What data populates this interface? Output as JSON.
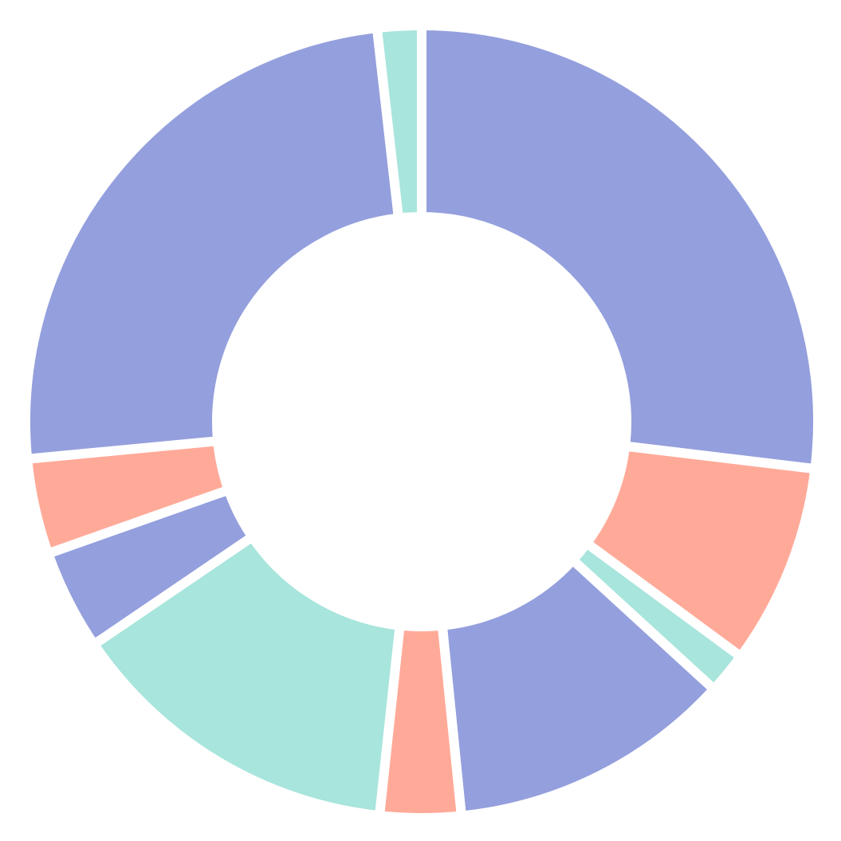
{
  "chart_data": {
    "type": "pie",
    "variant": "donut",
    "title": "",
    "legend": "none",
    "slices": [
      {
        "value": 26.9,
        "color": "#949fdd"
      },
      {
        "value": 8.2,
        "color": "#ffaa99"
      },
      {
        "value": 1.7,
        "color": "#a8e5dc"
      },
      {
        "value": 11.6,
        "color": "#949fdd"
      },
      {
        "value": 3.3,
        "color": "#ffaa99"
      },
      {
        "value": 13.8,
        "color": "#a8e5dc"
      },
      {
        "value": 4.1,
        "color": "#949fdd"
      },
      {
        "value": 3.9,
        "color": "#ffaa99"
      },
      {
        "value": 24.7,
        "color": "#949fdd"
      },
      {
        "value": 1.8,
        "color": "#a8e5dc"
      }
    ]
  }
}
